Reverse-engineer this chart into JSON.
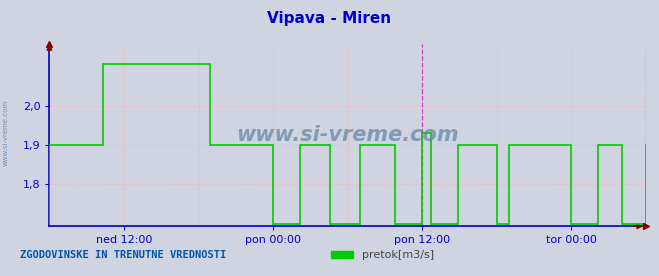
{
  "title": "Vipava - Miren",
  "title_color": "#0000cc",
  "title_fontsize": 11,
  "bg_color": "#d0d4e0",
  "plot_bg_color": "#d0d4e0",
  "ylabel": "",
  "ylim": [
    1.69,
    2.16
  ],
  "yticks": [
    1.8,
    1.9,
    2.0
  ],
  "ytick_labels": [
    "1,8",
    "1,9",
    "2,0"
  ],
  "xtick_labels": [
    "ned 12:00",
    "pon 00:00",
    "pon 12:00",
    "tor 00:00"
  ],
  "xtick_positions": [
    0.125,
    0.375,
    0.625,
    0.875
  ],
  "watermark": "www.si-vreme.com",
  "watermark_color": "#6688aa",
  "footer_text": "ZGODOVINSKE IN TRENUTNE VREDNOSTI",
  "footer_color": "#0055aa",
  "legend_label": "pretok[m3/s]",
  "legend_color": "#00cc00",
  "line_color": "#00cc00",
  "line_width": 1.2,
  "axis_color": "#0000cc",
  "tick_color": "#0000cc",
  "vline_color": "#cc44cc",
  "vline_positions": [
    0.625,
    1.001
  ],
  "arrow_color": "#880000",
  "grid_color": "#ffb0b0",
  "extra_vgrid": [
    0.0,
    0.25,
    0.5,
    0.75,
    1.0
  ],
  "x_data": [
    0.0,
    0.0,
    0.09,
    0.09,
    0.27,
    0.27,
    0.375,
    0.375,
    0.42,
    0.42,
    0.47,
    0.47,
    0.52,
    0.52,
    0.58,
    0.58,
    0.625,
    0.625,
    0.64,
    0.64,
    0.685,
    0.685,
    0.75,
    0.75,
    0.77,
    0.77,
    0.875,
    0.875,
    0.92,
    0.92,
    0.96,
    0.96,
    1.0,
    1.0
  ],
  "y_data": [
    1.695,
    1.9,
    1.9,
    2.11,
    2.11,
    1.9,
    1.9,
    1.695,
    1.695,
    1.9,
    1.9,
    1.695,
    1.695,
    1.9,
    1.9,
    1.695,
    1.695,
    1.93,
    1.93,
    1.695,
    1.695,
    1.9,
    1.9,
    1.695,
    1.695,
    1.9,
    1.9,
    1.695,
    1.695,
    1.9,
    1.9,
    1.695,
    1.695,
    1.9
  ]
}
